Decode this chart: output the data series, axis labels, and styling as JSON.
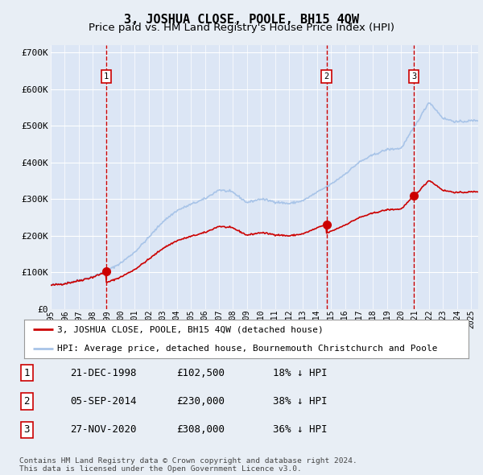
{
  "title": "3, JOSHUA CLOSE, POOLE, BH15 4QW",
  "subtitle": "Price paid vs. HM Land Registry's House Price Index (HPI)",
  "ylim": [
    0,
    720000
  ],
  "yticks": [
    0,
    100000,
    200000,
    300000,
    400000,
    500000,
    600000,
    700000
  ],
  "ytick_labels": [
    "£0",
    "£100K",
    "£200K",
    "£300K",
    "£400K",
    "£500K",
    "£600K",
    "£700K"
  ],
  "background_color": "#e8eef5",
  "plot_bg_color": "#dce6f5",
  "grid_color": "#ffffff",
  "hpi_color": "#a8c4e8",
  "sale_color": "#cc0000",
  "sale_points": [
    {
      "year": 1998.97,
      "price": 102500,
      "label": "1"
    },
    {
      "year": 2014.68,
      "price": 230000,
      "label": "2"
    },
    {
      "year": 2020.91,
      "price": 308000,
      "label": "3"
    }
  ],
  "legend_entries": [
    "3, JOSHUA CLOSE, POOLE, BH15 4QW (detached house)",
    "HPI: Average price, detached house, Bournemouth Christchurch and Poole"
  ],
  "table_rows": [
    {
      "num": "1",
      "date": "21-DEC-1998",
      "price": "£102,500",
      "hpi": "18% ↓ HPI"
    },
    {
      "num": "2",
      "date": "05-SEP-2014",
      "price": "£230,000",
      "hpi": "38% ↓ HPI"
    },
    {
      "num": "3",
      "date": "27-NOV-2020",
      "price": "£308,000",
      "hpi": "36% ↓ HPI"
    }
  ],
  "footnote": "Contains HM Land Registry data © Crown copyright and database right 2024.\nThis data is licensed under the Open Government Licence v3.0.",
  "title_fontsize": 11,
  "subtitle_fontsize": 9.5,
  "axis_fontsize": 8,
  "legend_fontsize": 8,
  "table_fontsize": 9
}
